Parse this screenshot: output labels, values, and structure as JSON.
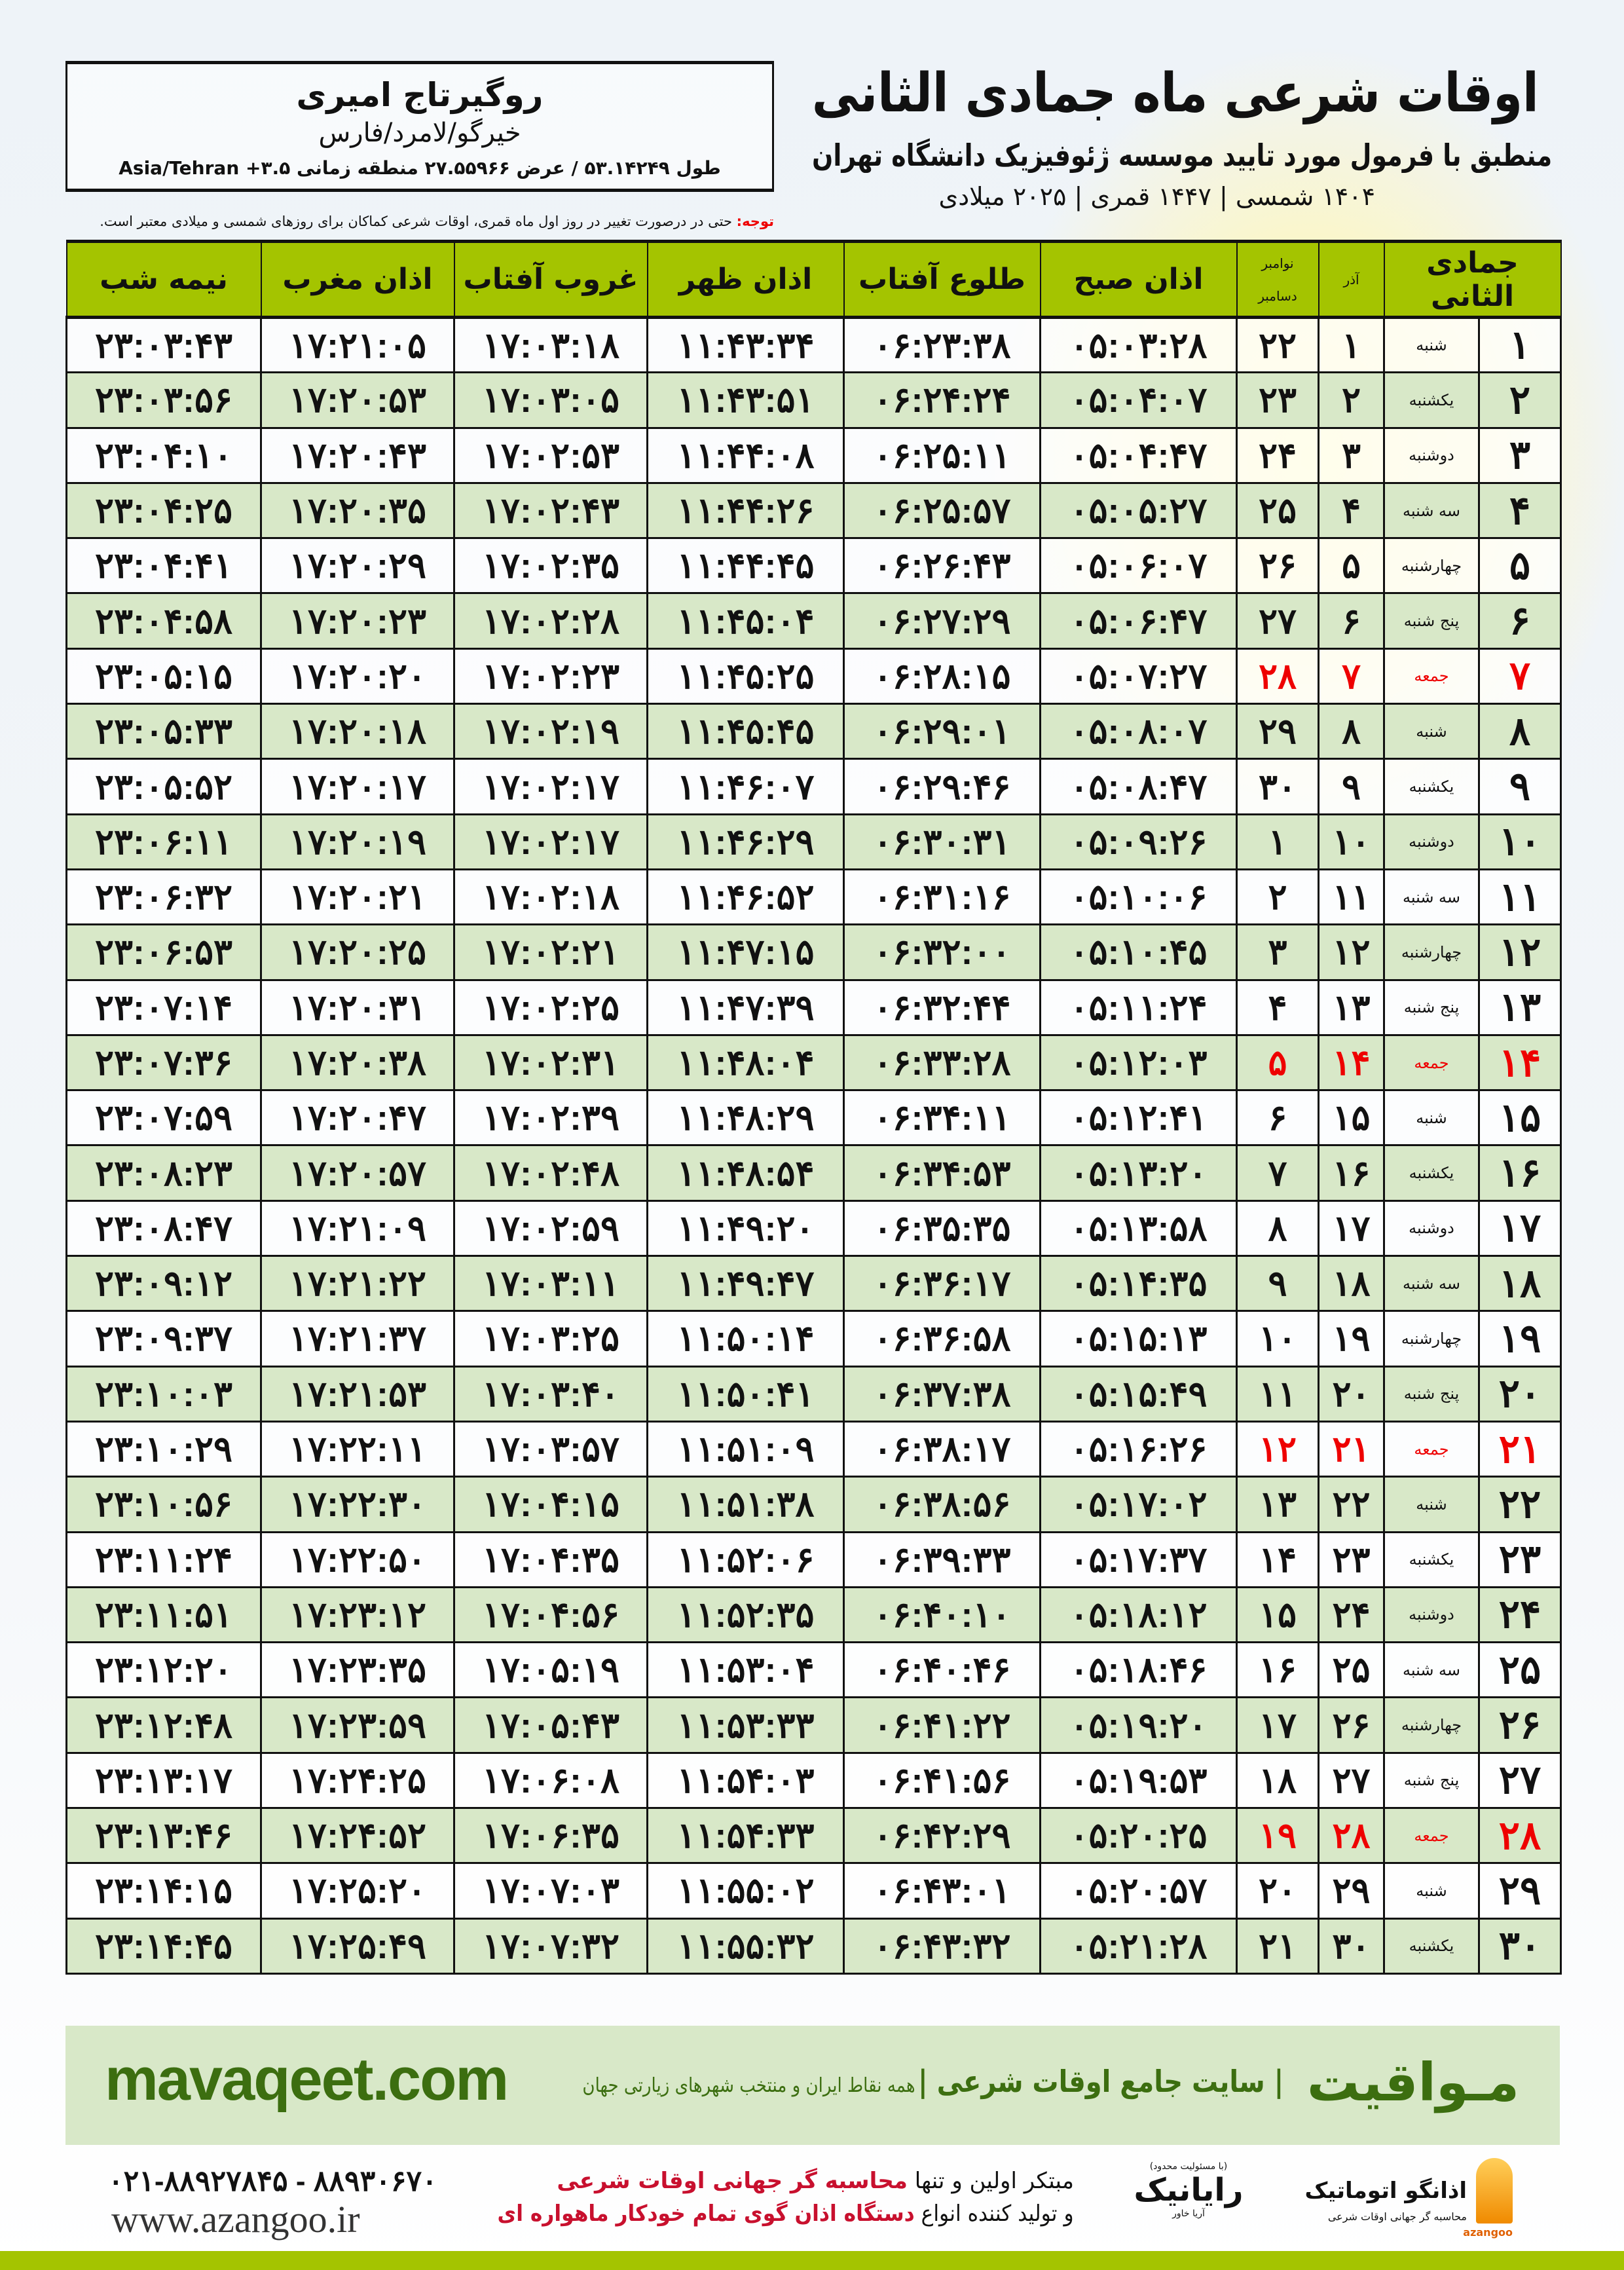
{
  "header": {
    "title": "اوقات شرعی ماه جمادی الثانی",
    "subtitle": "منطبق با فرمول مورد تایید موسسه ژئوفیزیک دانشگاه تهران",
    "dates": "۱۴۰۴ شمسی | ۱۴۴۷ قمری | ۲۰۲۵ میلادی"
  },
  "location": {
    "name": "روگیرتاج امیری",
    "region": "خیرگو/لامرد/فارس",
    "coords": "طول ۵۳.۱۴۲۴۹ / عرض ۲۷.۵۵۹۶۶ منطقه زمانی ۳.۵+ Asia/Tehran"
  },
  "notice": {
    "label": "توجه:",
    "text": " حتی در درصورت تغییر در روز اول ماه قمری، اوقات شرعی کماکان برای روزهای شمسی و میلادی معتبر است."
  },
  "table": {
    "headers": {
      "hijri": "جمادی الثانی",
      "azar": "آذر",
      "greg_top": "نوامبر",
      "greg_bottom": "دسامبر",
      "fajr": "اذان صبح",
      "sunrise": "طلوع آفتاب",
      "dhuhr": "اذان ظهر",
      "sunset": "غروب آفتاب",
      "maghrib": "اذان مغرب",
      "midnight": "نیمه شب"
    },
    "friday_color": "#e00000",
    "header_color": "#a4c400",
    "alt_row_color": "#d8e8c8",
    "rows": [
      [
        "۱",
        "شنبه",
        "۱",
        "۲۲",
        "۰۵:۰۳:۲۸",
        "۰۶:۲۳:۳۸",
        "۱۱:۴۳:۳۴",
        "۱۷:۰۳:۱۸",
        "۱۷:۲۱:۰۵",
        "۲۳:۰۳:۴۳"
      ],
      [
        "۲",
        "یکشنبه",
        "۲",
        "۲۳",
        "۰۵:۰۴:۰۷",
        "۰۶:۲۴:۲۴",
        "۱۱:۴۳:۵۱",
        "۱۷:۰۳:۰۵",
        "۱۷:۲۰:۵۳",
        "۲۳:۰۳:۵۶"
      ],
      [
        "۳",
        "دوشنبه",
        "۳",
        "۲۴",
        "۰۵:۰۴:۴۷",
        "۰۶:۲۵:۱۱",
        "۱۱:۴۴:۰۸",
        "۱۷:۰۲:۵۳",
        "۱۷:۲۰:۴۳",
        "۲۳:۰۴:۱۰"
      ],
      [
        "۴",
        "سه شنبه",
        "۴",
        "۲۵",
        "۰۵:۰۵:۲۷",
        "۰۶:۲۵:۵۷",
        "۱۱:۴۴:۲۶",
        "۱۷:۰۲:۴۳",
        "۱۷:۲۰:۳۵",
        "۲۳:۰۴:۲۵"
      ],
      [
        "۵",
        "چهارشنبه",
        "۵",
        "۲۶",
        "۰۵:۰۶:۰۷",
        "۰۶:۲۶:۴۳",
        "۱۱:۴۴:۴۵",
        "۱۷:۰۲:۳۵",
        "۱۷:۲۰:۲۹",
        "۲۳:۰۴:۴۱"
      ],
      [
        "۶",
        "پنج شنبه",
        "۶",
        "۲۷",
        "۰۵:۰۶:۴۷",
        "۰۶:۲۷:۲۹",
        "۱۱:۴۵:۰۴",
        "۱۷:۰۲:۲۸",
        "۱۷:۲۰:۲۳",
        "۲۳:۰۴:۵۸"
      ],
      [
        "۷",
        "جمعه",
        "۷",
        "۲۸",
        "۰۵:۰۷:۲۷",
        "۰۶:۲۸:۱۵",
        "۱۱:۴۵:۲۵",
        "۱۷:۰۲:۲۳",
        "۱۷:۲۰:۲۰",
        "۲۳:۰۵:۱۵"
      ],
      [
        "۸",
        "شنبه",
        "۸",
        "۲۹",
        "۰۵:۰۸:۰۷",
        "۰۶:۲۹:۰۱",
        "۱۱:۴۵:۴۵",
        "۱۷:۰۲:۱۹",
        "۱۷:۲۰:۱۸",
        "۲۳:۰۵:۳۳"
      ],
      [
        "۹",
        "یکشنبه",
        "۹",
        "۳۰",
        "۰۵:۰۸:۴۷",
        "۰۶:۲۹:۴۶",
        "۱۱:۴۶:۰۷",
        "۱۷:۰۲:۱۷",
        "۱۷:۲۰:۱۷",
        "۲۳:۰۵:۵۲"
      ],
      [
        "۱۰",
        "دوشنبه",
        "۱۰",
        "۱",
        "۰۵:۰۹:۲۶",
        "۰۶:۳۰:۳۱",
        "۱۱:۴۶:۲۹",
        "۱۷:۰۲:۱۷",
        "۱۷:۲۰:۱۹",
        "۲۳:۰۶:۱۱"
      ],
      [
        "۱۱",
        "سه شنبه",
        "۱۱",
        "۲",
        "۰۵:۱۰:۰۶",
        "۰۶:۳۱:۱۶",
        "۱۱:۴۶:۵۲",
        "۱۷:۰۲:۱۸",
        "۱۷:۲۰:۲۱",
        "۲۳:۰۶:۳۲"
      ],
      [
        "۱۲",
        "چهارشنبه",
        "۱۲",
        "۳",
        "۰۵:۱۰:۴۵",
        "۰۶:۳۲:۰۰",
        "۱۱:۴۷:۱۵",
        "۱۷:۰۲:۲۱",
        "۱۷:۲۰:۲۵",
        "۲۳:۰۶:۵۳"
      ],
      [
        "۱۳",
        "پنج شنبه",
        "۱۳",
        "۴",
        "۰۵:۱۱:۲۴",
        "۰۶:۳۲:۴۴",
        "۱۱:۴۷:۳۹",
        "۱۷:۰۲:۲۵",
        "۱۷:۲۰:۳۱",
        "۲۳:۰۷:۱۴"
      ],
      [
        "۱۴",
        "جمعه",
        "۱۴",
        "۵",
        "۰۵:۱۲:۰۳",
        "۰۶:۳۳:۲۸",
        "۱۱:۴۸:۰۴",
        "۱۷:۰۲:۳۱",
        "۱۷:۲۰:۳۸",
        "۲۳:۰۷:۳۶"
      ],
      [
        "۱۵",
        "شنبه",
        "۱۵",
        "۶",
        "۰۵:۱۲:۴۱",
        "۰۶:۳۴:۱۱",
        "۱۱:۴۸:۲۹",
        "۱۷:۰۲:۳۹",
        "۱۷:۲۰:۴۷",
        "۲۳:۰۷:۵۹"
      ],
      [
        "۱۶",
        "یکشنبه",
        "۱۶",
        "۷",
        "۰۵:۱۳:۲۰",
        "۰۶:۳۴:۵۳",
        "۱۱:۴۸:۵۴",
        "۱۷:۰۲:۴۸",
        "۱۷:۲۰:۵۷",
        "۲۳:۰۸:۲۳"
      ],
      [
        "۱۷",
        "دوشنبه",
        "۱۷",
        "۸",
        "۰۵:۱۳:۵۸",
        "۰۶:۳۵:۳۵",
        "۱۱:۴۹:۲۰",
        "۱۷:۰۲:۵۹",
        "۱۷:۲۱:۰۹",
        "۲۳:۰۸:۴۷"
      ],
      [
        "۱۸",
        "سه شنبه",
        "۱۸",
        "۹",
        "۰۵:۱۴:۳۵",
        "۰۶:۳۶:۱۷",
        "۱۱:۴۹:۴۷",
        "۱۷:۰۳:۱۱",
        "۱۷:۲۱:۲۲",
        "۲۳:۰۹:۱۲"
      ],
      [
        "۱۹",
        "چهارشنبه",
        "۱۹",
        "۱۰",
        "۰۵:۱۵:۱۳",
        "۰۶:۳۶:۵۸",
        "۱۱:۵۰:۱۴",
        "۱۷:۰۳:۲۵",
        "۱۷:۲۱:۳۷",
        "۲۳:۰۹:۳۷"
      ],
      [
        "۲۰",
        "پنج شنبه",
        "۲۰",
        "۱۱",
        "۰۵:۱۵:۴۹",
        "۰۶:۳۷:۳۸",
        "۱۱:۵۰:۴۱",
        "۱۷:۰۳:۴۰",
        "۱۷:۲۱:۵۳",
        "۲۳:۱۰:۰۳"
      ],
      [
        "۲۱",
        "جمعه",
        "۲۱",
        "۱۲",
        "۰۵:۱۶:۲۶",
        "۰۶:۳۸:۱۷",
        "۱۱:۵۱:۰۹",
        "۱۷:۰۳:۵۷",
        "۱۷:۲۲:۱۱",
        "۲۳:۱۰:۲۹"
      ],
      [
        "۲۲",
        "شنبه",
        "۲۲",
        "۱۳",
        "۰۵:۱۷:۰۲",
        "۰۶:۳۸:۵۶",
        "۱۱:۵۱:۳۸",
        "۱۷:۰۴:۱۵",
        "۱۷:۲۲:۳۰",
        "۲۳:۱۰:۵۶"
      ],
      [
        "۲۳",
        "یکشنبه",
        "۲۳",
        "۱۴",
        "۰۵:۱۷:۳۷",
        "۰۶:۳۹:۳۳",
        "۱۱:۵۲:۰۶",
        "۱۷:۰۴:۳۵",
        "۱۷:۲۲:۵۰",
        "۲۳:۱۱:۲۴"
      ],
      [
        "۲۴",
        "دوشنبه",
        "۲۴",
        "۱۵",
        "۰۵:۱۸:۱۲",
        "۰۶:۴۰:۱۰",
        "۱۱:۵۲:۳۵",
        "۱۷:۰۴:۵۶",
        "۱۷:۲۳:۱۲",
        "۲۳:۱۱:۵۱"
      ],
      [
        "۲۵",
        "سه شنبه",
        "۲۵",
        "۱۶",
        "۰۵:۱۸:۴۶",
        "۰۶:۴۰:۴۶",
        "۱۱:۵۳:۰۴",
        "۱۷:۰۵:۱۹",
        "۱۷:۲۳:۳۵",
        "۲۳:۱۲:۲۰"
      ],
      [
        "۲۶",
        "چهارشنبه",
        "۲۶",
        "۱۷",
        "۰۵:۱۹:۲۰",
        "۰۶:۴۱:۲۲",
        "۱۱:۵۳:۳۳",
        "۱۷:۰۵:۴۳",
        "۱۷:۲۳:۵۹",
        "۲۳:۱۲:۴۸"
      ],
      [
        "۲۷",
        "پنج شنبه",
        "۲۷",
        "۱۸",
        "۰۵:۱۹:۵۳",
        "۰۶:۴۱:۵۶",
        "۱۱:۵۴:۰۳",
        "۱۷:۰۶:۰۸",
        "۱۷:۲۴:۲۵",
        "۲۳:۱۳:۱۷"
      ],
      [
        "۲۸",
        "جمعه",
        "۲۸",
        "۱۹",
        "۰۵:۲۰:۲۵",
        "۰۶:۴۲:۲۹",
        "۱۱:۵۴:۳۳",
        "۱۷:۰۶:۳۵",
        "۱۷:۲۴:۵۲",
        "۲۳:۱۳:۴۶"
      ],
      [
        "۲۹",
        "شنبه",
        "۲۹",
        "۲۰",
        "۰۵:۲۰:۵۷",
        "۰۶:۴۳:۰۱",
        "۱۱:۵۵:۰۲",
        "۱۷:۰۷:۰۳",
        "۱۷:۲۵:۲۰",
        "۲۳:۱۴:۱۵"
      ],
      [
        "۳۰",
        "یکشنبه",
        "۳۰",
        "۲۱",
        "۰۵:۲۱:۲۸",
        "۰۶:۴۳:۳۲",
        "۱۱:۵۵:۳۲",
        "۱۷:۰۷:۳۲",
        "۱۷:۲۵:۴۹",
        "۲۳:۱۴:۴۵"
      ]
    ]
  },
  "footer": {
    "brand": "مـواقیت",
    "brand_tagline": "| سایت جامع اوقات شرعی |",
    "brand_sub": "همه نقاط ایران و منتخب شهرهای زیارتی جهان",
    "site": "mavaqeet.com",
    "phone": "۰۲۱-۸۸۹۲۷۸۴۵ - ۸۸۹۳۰۶۷۰",
    "www": "www.azangoo.ir",
    "promo1a": "مبتکر اولین و تنها ",
    "promo1b": "محاسبه گر جهانی اوقات شرعی",
    "promo2a": "و تولید کننده انواع ",
    "promo2b": "دستگاه اذان گوی تمام خودکار ماهواره ای",
    "rayanik": "رایانیک",
    "rayanik_sub": "آریا خاور",
    "rayanik_note": "(با مسئولیت محدود)",
    "azangoo": "اذانگو اتوماتیک",
    "azangoo_sub": "محاسبه گر جهانی اوقات شرعی",
    "azangoo_en": "azangoo",
    "accent_color": "#3c6e10"
  }
}
